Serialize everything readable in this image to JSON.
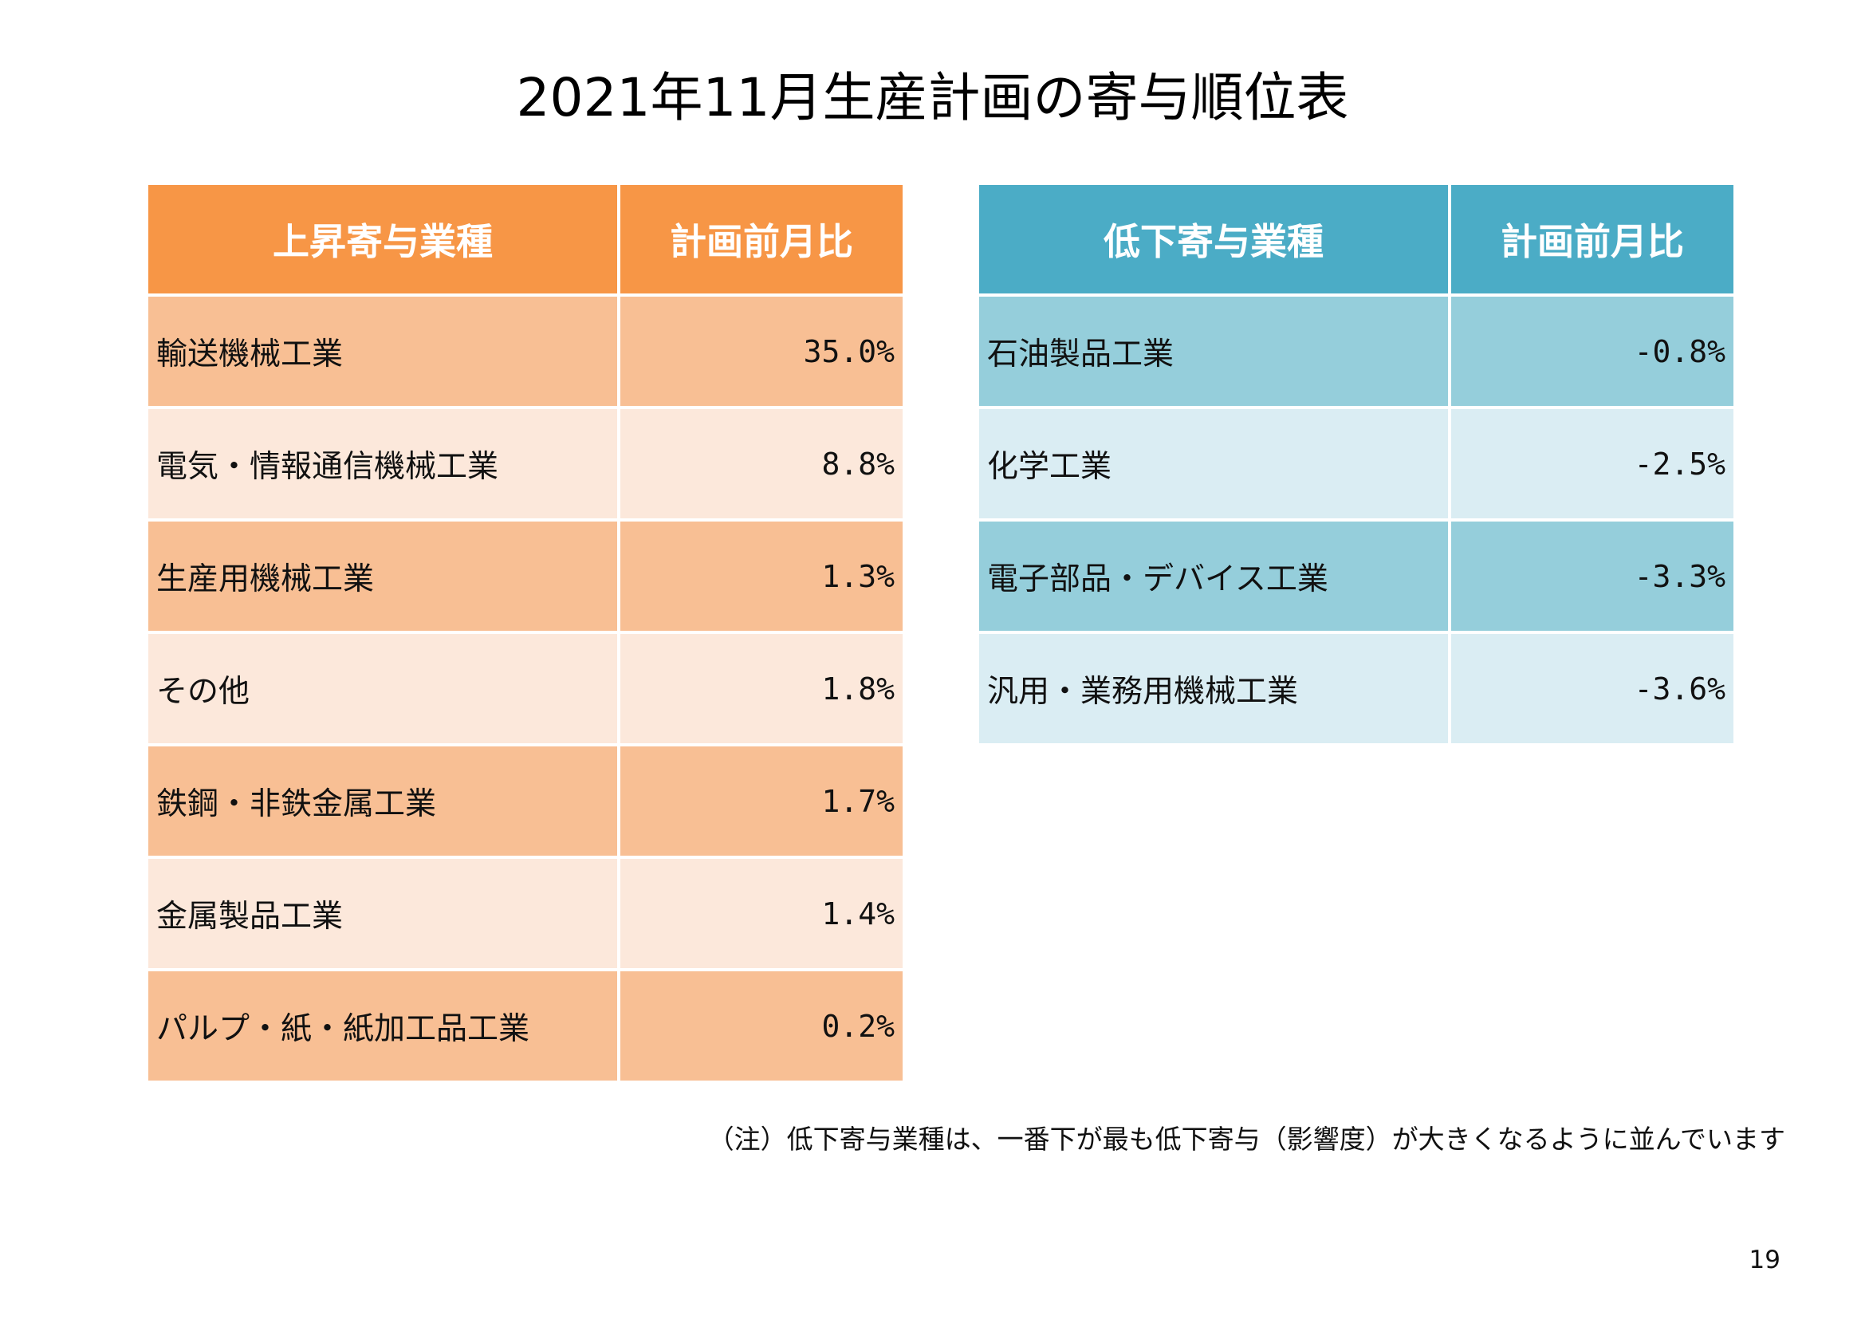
{
  "title": "2021年11月生産計画の寄与順位表",
  "colors": {
    "rise_header": "#f79646",
    "rise_row_dark": "#f8bf94",
    "rise_row_light": "#fce8db",
    "fall_header": "#4bacc6",
    "fall_row_dark": "#95cedb",
    "fall_row_light": "#daedf3"
  },
  "rise": {
    "headers": [
      "上昇寄与業種",
      "計画前月比"
    ],
    "rows": [
      {
        "industry": "輸送機械工業",
        "value": "35.0%"
      },
      {
        "industry": "電気・情報通信機械工業",
        "value": "8.8%"
      },
      {
        "industry": "生産用機械工業",
        "value": "1.3%"
      },
      {
        "industry": "その他",
        "value": "1.8%"
      },
      {
        "industry": "鉄鋼・非鉄金属工業",
        "value": "1.7%"
      },
      {
        "industry": "金属製品工業",
        "value": "1.4%"
      },
      {
        "industry": "パルプ・紙・紙加工品工業",
        "value": "0.2%"
      }
    ]
  },
  "fall": {
    "headers": [
      "低下寄与業種",
      "計画前月比"
    ],
    "rows": [
      {
        "industry": "石油製品工業",
        "value": "-0.8%"
      },
      {
        "industry": "化学工業",
        "value": "-2.5%"
      },
      {
        "industry": "電子部品・デバイス工業",
        "value": "-3.3%"
      },
      {
        "industry": "汎用・業務用機械工業",
        "value": "-3.6%"
      }
    ]
  },
  "note": "（注）低下寄与業種は、一番下が最も低下寄与（影響度）が大きくなるように並んでいます",
  "page_number": "19"
}
